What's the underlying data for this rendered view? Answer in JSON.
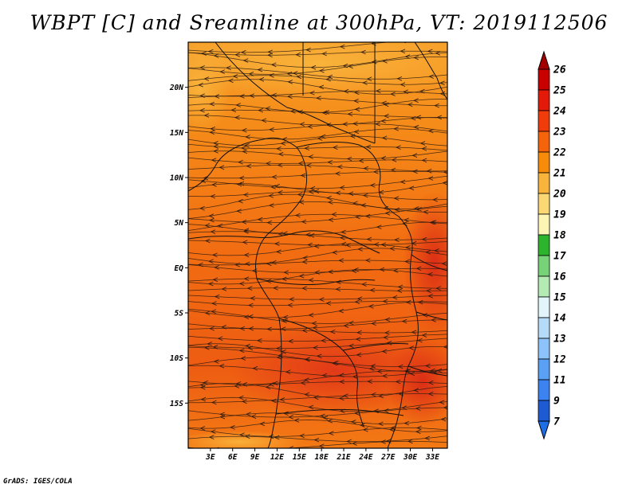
{
  "title": "WBPT [C] and Sreamline at 300hPa, VT: 2019112506",
  "credit": "GrADS: IGES/COLA",
  "map": {
    "lon_range": [
      0,
      35
    ],
    "lat_range": [
      -20,
      25
    ],
    "lon_ticks": [
      "3E",
      "6E",
      "9E",
      "12E",
      "15E",
      "18E",
      "21E",
      "24E",
      "27E",
      "30E",
      "33E"
    ],
    "lon_tick_values": [
      3,
      6,
      9,
      12,
      15,
      18,
      21,
      24,
      27,
      30,
      33
    ],
    "lat_ticks": [
      "20N",
      "15N",
      "10N",
      "5N",
      "EQ",
      "5S",
      "10S",
      "15S"
    ],
    "lat_tick_values": [
      20,
      15,
      10,
      5,
      0,
      -5,
      -10,
      -15
    ]
  },
  "colorbar": {
    "labels": [
      "26",
      "25",
      "24",
      "23",
      "22",
      "21",
      "20",
      "19",
      "18",
      "17",
      "16",
      "15",
      "14",
      "13",
      "12",
      "11",
      "9",
      "7"
    ],
    "colors": [
      "#a50000",
      "#c80000",
      "#e31a0a",
      "#f03c0a",
      "#f5640a",
      "#f78c0a",
      "#f9b43c",
      "#fbd873",
      "#fcf5b4",
      "#2db42d",
      "#78d278",
      "#b4ebb4",
      "#e1f5fa",
      "#b4dcfa",
      "#8cc3fa",
      "#5aa0f5",
      "#3c82f0",
      "#1e5ad2",
      "#1e6ee6"
    ]
  },
  "colors": {
    "low_field": "#f7951e",
    "mid_field": "#f36a12",
    "high_field": "#e2371a"
  }
}
